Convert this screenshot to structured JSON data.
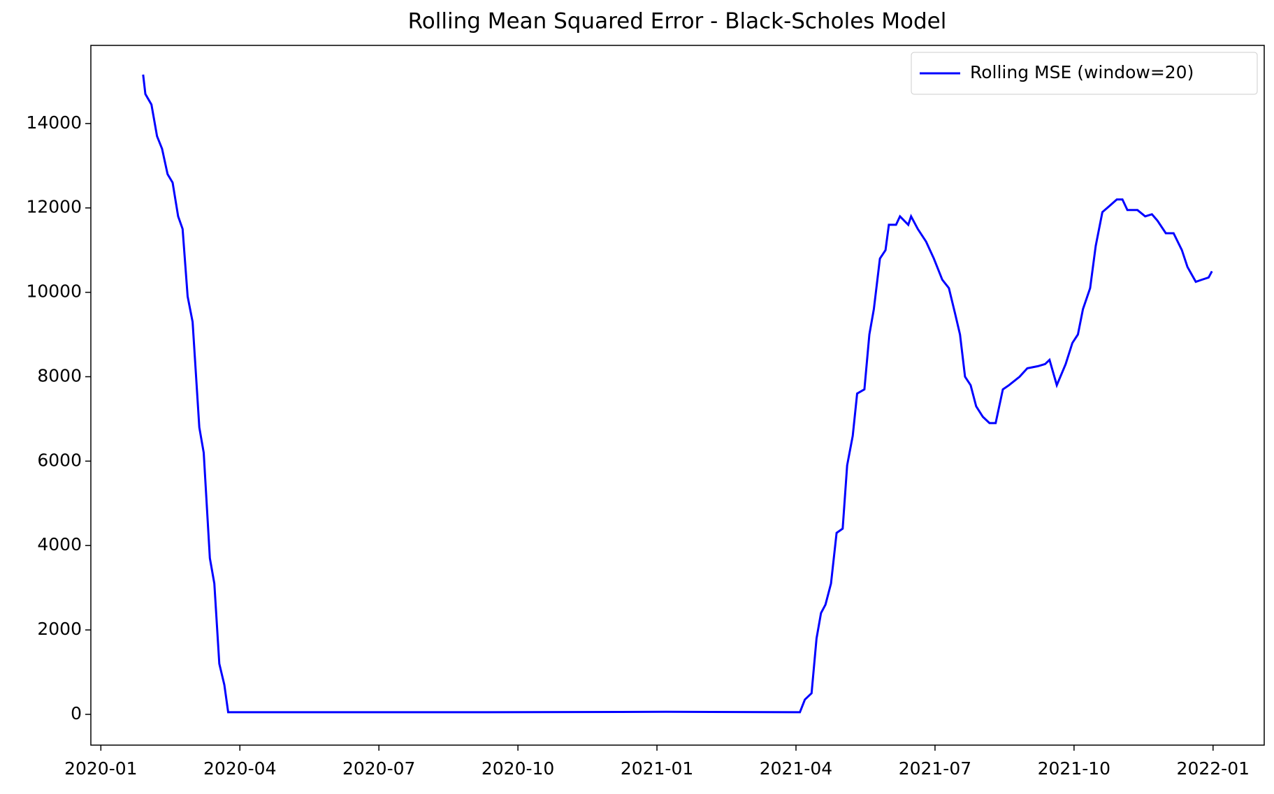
{
  "chart_data": {
    "type": "line",
    "title": "Rolling Mean Squared Error - Black-Scholes Model",
    "legend": "upper right",
    "grid": false,
    "xlim": [
      2019.982,
      2022.092
    ],
    "ylim": [
      -729,
      15851
    ],
    "xticks": [
      {
        "value": 2020,
        "label": "2020-01"
      },
      {
        "value": 2020.25,
        "label": "2020-04"
      },
      {
        "value": 2020.5,
        "label": "2020-07"
      },
      {
        "value": 2020.75,
        "label": "2020-10"
      },
      {
        "value": 2021,
        "label": "2021-01"
      },
      {
        "value": 2021.25,
        "label": "2021-04"
      },
      {
        "value": 2021.5,
        "label": "2021-07"
      },
      {
        "value": 2021.75,
        "label": "2021-10"
      },
      {
        "value": 2022,
        "label": "2022-01"
      }
    ],
    "yticks": [
      0,
      2000,
      4000,
      6000,
      8000,
      10000,
      12000,
      14000
    ],
    "x": [
      2020.076,
      2020.08,
      2020.091,
      2020.101,
      2020.11,
      2020.12,
      2020.129,
      2020.139,
      2020.147,
      2020.156,
      2020.165,
      2020.177,
      2020.185,
      2020.196,
      2020.204,
      2020.213,
      2020.222,
      2020.229,
      2020.403,
      2020.695,
      2021.016,
      2021.257,
      2021.266,
      2021.278,
      2021.287,
      2021.295,
      2021.303,
      2021.313,
      2021.323,
      2021.334,
      2021.342,
      2021.352,
      2021.36,
      2021.373,
      2021.382,
      2021.39,
      2021.401,
      2021.411,
      2021.417,
      2021.43,
      2021.437,
      2021.452,
      2021.457,
      2021.469,
      2021.484,
      2021.498,
      2021.513,
      2021.525,
      2021.536,
      2021.545,
      2021.554,
      2021.564,
      2021.574,
      2021.586,
      2021.598,
      2021.609,
      2021.622,
      2021.633,
      2021.652,
      2021.666,
      2021.685,
      2021.698,
      2021.706,
      2021.719,
      2021.735,
      2021.747,
      2021.757,
      2021.766,
      2021.779,
      2021.789,
      2021.801,
      2021.814,
      2021.827,
      2021.837,
      2021.846,
      2021.864,
      2021.878,
      2021.89,
      2021.9,
      2021.915,
      2021.929,
      2021.944,
      2021.954,
      2021.969,
      2021.98,
      2021.992,
      2021.998
    ],
    "series": [
      {
        "name": "Rolling MSE (window=20)",
        "color": "#0000ff",
        "values": [
          15160,
          14700,
          14450,
          13700,
          13400,
          12800,
          12600,
          11800,
          11500,
          9900,
          9300,
          6800,
          6200,
          3700,
          3100,
          1200,
          700,
          50,
          50,
          50,
          60,
          50,
          350,
          500,
          1800,
          2400,
          2600,
          3100,
          4300,
          4400,
          5900,
          6600,
          7600,
          7700,
          9000,
          9600,
          10800,
          11000,
          11600,
          11600,
          11800,
          11600,
          11800,
          11500,
          11200,
          10800,
          10300,
          10100,
          9500,
          9000,
          8000,
          7800,
          7300,
          7050,
          6900,
          6900,
          7700,
          7800,
          8000,
          8200,
          8250,
          8300,
          8400,
          7800,
          8300,
          8800,
          9000,
          9600,
          10100,
          11100,
          11900,
          12050,
          12200,
          12200,
          11950,
          11950,
          11800,
          11850,
          11700,
          11400,
          11400,
          11000,
          10600,
          10250,
          10300,
          10350,
          10500
        ]
      }
    ]
  }
}
